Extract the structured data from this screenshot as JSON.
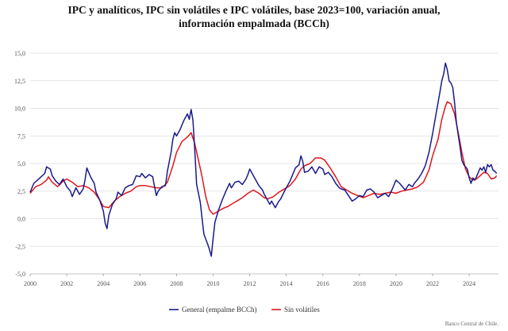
{
  "chart_data": {
    "type": "line",
    "title_line1": "IPC y analíticos, IPC sin volátiles e IPC volátiles, base 2023=100, variación anual,",
    "title_line2": "información empalmada (BCCh)",
    "xlabel": "",
    "ylabel": "",
    "xlim": [
      2000,
      2025.6
    ],
    "ylim": [
      -5.0,
      15.0
    ],
    "y_ticks": [
      "15,0",
      "12,5",
      "10,0",
      "7,5",
      "5,0",
      "2,5",
      "0,0",
      "-2,5",
      "-5,0"
    ],
    "y_tick_values": [
      15,
      12.5,
      10,
      7.5,
      5,
      2.5,
      0,
      -2.5,
      -5
    ],
    "x_ticks": [
      "2000",
      "2002",
      "2004",
      "2006",
      "2008",
      "2010",
      "2012",
      "2014",
      "2016",
      "2018",
      "2020",
      "2022",
      "2024"
    ],
    "x_tick_values": [
      2000,
      2002,
      2004,
      2006,
      2008,
      2010,
      2012,
      2014,
      2016,
      2018,
      2020,
      2022,
      2024
    ],
    "legend_position": "bottom",
    "source": "Banco Central de Chile.",
    "series": [
      {
        "name": "General (empalme BCCh)",
        "color": "#1a1a8c",
        "points": [
          [
            2000.0,
            2.4
          ],
          [
            2000.2,
            3.2
          ],
          [
            2000.4,
            3.5
          ],
          [
            2000.6,
            3.8
          ],
          [
            2000.8,
            4.1
          ],
          [
            2000.9,
            4.7
          ],
          [
            2001.0,
            4.6
          ],
          [
            2001.1,
            4.5
          ],
          [
            2001.2,
            3.9
          ],
          [
            2001.4,
            3.4
          ],
          [
            2001.6,
            3.1
          ],
          [
            2001.8,
            3.6
          ],
          [
            2002.0,
            2.9
          ],
          [
            2002.2,
            2.5
          ],
          [
            2002.3,
            2.0
          ],
          [
            2002.5,
            2.8
          ],
          [
            2002.7,
            2.2
          ],
          [
            2002.9,
            2.7
          ],
          [
            2003.0,
            3.5
          ],
          [
            2003.1,
            4.6
          ],
          [
            2003.3,
            3.8
          ],
          [
            2003.5,
            3.2
          ],
          [
            2003.6,
            2.4
          ],
          [
            2003.8,
            1.7
          ],
          [
            2004.0,
            0.7
          ],
          [
            2004.1,
            -0.4
          ],
          [
            2004.2,
            -0.9
          ],
          [
            2004.3,
            0.3
          ],
          [
            2004.5,
            1.3
          ],
          [
            2004.7,
            1.8
          ],
          [
            2004.8,
            2.4
          ],
          [
            2005.0,
            2.1
          ],
          [
            2005.2,
            2.8
          ],
          [
            2005.4,
            3.0
          ],
          [
            2005.6,
            3.1
          ],
          [
            2005.8,
            3.9
          ],
          [
            2006.0,
            3.8
          ],
          [
            2006.1,
            4.1
          ],
          [
            2006.3,
            3.7
          ],
          [
            2006.5,
            4.0
          ],
          [
            2006.7,
            3.8
          ],
          [
            2006.8,
            2.9
          ],
          [
            2006.9,
            2.1
          ],
          [
            2007.0,
            2.5
          ],
          [
            2007.2,
            2.9
          ],
          [
            2007.4,
            3.0
          ],
          [
            2007.5,
            4.3
          ],
          [
            2007.7,
            6.0
          ],
          [
            2007.8,
            7.2
          ],
          [
            2007.9,
            7.8
          ],
          [
            2008.0,
            7.5
          ],
          [
            2008.2,
            8.1
          ],
          [
            2008.4,
            8.9
          ],
          [
            2008.5,
            9.2
          ],
          [
            2008.6,
            9.5
          ],
          [
            2008.7,
            9.0
          ],
          [
            2008.8,
            9.9
          ],
          [
            2008.9,
            8.9
          ],
          [
            2009.0,
            6.2
          ],
          [
            2009.1,
            3.1
          ],
          [
            2009.3,
            1.5
          ],
          [
            2009.4,
            0.0
          ],
          [
            2009.5,
            -1.4
          ],
          [
            2009.7,
            -2.3
          ],
          [
            2009.8,
            -2.8
          ],
          [
            2009.9,
            -3.4
          ],
          [
            2010.0,
            -1.8
          ],
          [
            2010.1,
            -0.3
          ],
          [
            2010.3,
            0.8
          ],
          [
            2010.5,
            1.7
          ],
          [
            2010.7,
            2.5
          ],
          [
            2010.9,
            3.2
          ],
          [
            2011.0,
            2.8
          ],
          [
            2011.2,
            3.3
          ],
          [
            2011.4,
            3.4
          ],
          [
            2011.6,
            3.1
          ],
          [
            2011.8,
            3.6
          ],
          [
            2011.9,
            4.0
          ],
          [
            2012.0,
            4.5
          ],
          [
            2012.1,
            4.2
          ],
          [
            2012.3,
            3.6
          ],
          [
            2012.5,
            3.0
          ],
          [
            2012.7,
            2.6
          ],
          [
            2012.8,
            2.2
          ],
          [
            2013.0,
            1.6
          ],
          [
            2013.1,
            1.3
          ],
          [
            2013.2,
            1.6
          ],
          [
            2013.4,
            1.0
          ],
          [
            2013.6,
            1.6
          ],
          [
            2013.7,
            1.8
          ],
          [
            2013.9,
            2.5
          ],
          [
            2014.0,
            2.8
          ],
          [
            2014.2,
            3.4
          ],
          [
            2014.4,
            4.2
          ],
          [
            2014.5,
            4.6
          ],
          [
            2014.7,
            4.9
          ],
          [
            2014.8,
            5.7
          ],
          [
            2014.9,
            5.2
          ],
          [
            2015.0,
            4.2
          ],
          [
            2015.2,
            4.3
          ],
          [
            2015.4,
            4.7
          ],
          [
            2015.6,
            4.1
          ],
          [
            2015.8,
            4.7
          ],
          [
            2016.0,
            4.5
          ],
          [
            2016.1,
            4.0
          ],
          [
            2016.3,
            4.2
          ],
          [
            2016.5,
            3.8
          ],
          [
            2016.7,
            3.2
          ],
          [
            2016.9,
            2.8
          ],
          [
            2017.0,
            2.7
          ],
          [
            2017.2,
            2.6
          ],
          [
            2017.4,
            2.1
          ],
          [
            2017.6,
            1.6
          ],
          [
            2017.8,
            1.8
          ],
          [
            2018.0,
            2.1
          ],
          [
            2018.2,
            2.0
          ],
          [
            2018.4,
            2.6
          ],
          [
            2018.6,
            2.7
          ],
          [
            2018.8,
            2.4
          ],
          [
            2019.0,
            1.9
          ],
          [
            2019.2,
            2.1
          ],
          [
            2019.4,
            2.3
          ],
          [
            2019.6,
            2.0
          ],
          [
            2019.8,
            2.7
          ],
          [
            2020.0,
            3.5
          ],
          [
            2020.2,
            3.2
          ],
          [
            2020.4,
            2.8
          ],
          [
            2020.5,
            2.6
          ],
          [
            2020.7,
            3.1
          ],
          [
            2020.9,
            2.9
          ],
          [
            2021.0,
            3.2
          ],
          [
            2021.2,
            3.6
          ],
          [
            2021.4,
            4.1
          ],
          [
            2021.6,
            4.8
          ],
          [
            2021.8,
            6.0
          ],
          [
            2022.0,
            7.7
          ],
          [
            2022.2,
            9.6
          ],
          [
            2022.4,
            11.5
          ],
          [
            2022.5,
            12.5
          ],
          [
            2022.6,
            13.1
          ],
          [
            2022.7,
            14.1
          ],
          [
            2022.8,
            13.5
          ],
          [
            2022.9,
            12.5
          ],
          [
            2023.0,
            12.3
          ],
          [
            2023.1,
            11.9
          ],
          [
            2023.2,
            10.5
          ],
          [
            2023.3,
            8.7
          ],
          [
            2023.4,
            7.6
          ],
          [
            2023.5,
            6.5
          ],
          [
            2023.6,
            5.3
          ],
          [
            2023.7,
            4.9
          ],
          [
            2023.8,
            4.7
          ],
          [
            2023.9,
            4.5
          ],
          [
            2024.0,
            3.7
          ],
          [
            2024.1,
            3.2
          ],
          [
            2024.2,
            3.7
          ],
          [
            2024.3,
            3.5
          ],
          [
            2024.4,
            3.8
          ],
          [
            2024.5,
            4.2
          ],
          [
            2024.6,
            4.6
          ],
          [
            2024.7,
            4.4
          ],
          [
            2024.8,
            4.7
          ],
          [
            2024.9,
            4.2
          ],
          [
            2025.0,
            4.9
          ],
          [
            2025.1,
            4.7
          ],
          [
            2025.2,
            4.9
          ],
          [
            2025.3,
            4.4
          ],
          [
            2025.4,
            4.3
          ],
          [
            2025.5,
            4.1
          ]
        ]
      },
      {
        "name": "Sin volátiles",
        "color": "#e0161b",
        "points": [
          [
            2000.0,
            2.3
          ],
          [
            2000.3,
            2.9
          ],
          [
            2000.6,
            3.1
          ],
          [
            2000.9,
            3.5
          ],
          [
            2001.0,
            3.8
          ],
          [
            2001.2,
            3.3
          ],
          [
            2001.5,
            2.9
          ],
          [
            2001.8,
            3.4
          ],
          [
            2002.0,
            3.6
          ],
          [
            2002.3,
            3.3
          ],
          [
            2002.6,
            2.9
          ],
          [
            2002.9,
            3.0
          ],
          [
            2003.2,
            2.8
          ],
          [
            2003.5,
            2.4
          ],
          [
            2003.8,
            1.7
          ],
          [
            2004.0,
            1.1
          ],
          [
            2004.3,
            1.0
          ],
          [
            2004.6,
            1.6
          ],
          [
            2004.9,
            2.0
          ],
          [
            2005.2,
            2.3
          ],
          [
            2005.5,
            2.5
          ],
          [
            2005.8,
            2.9
          ],
          [
            2006.0,
            3.0
          ],
          [
            2006.3,
            3.0
          ],
          [
            2006.6,
            2.9
          ],
          [
            2006.9,
            2.8
          ],
          [
            2007.2,
            2.8
          ],
          [
            2007.5,
            3.3
          ],
          [
            2007.8,
            4.8
          ],
          [
            2008.0,
            6.0
          ],
          [
            2008.3,
            7.0
          ],
          [
            2008.6,
            7.4
          ],
          [
            2008.8,
            7.8
          ],
          [
            2009.0,
            6.8
          ],
          [
            2009.2,
            5.3
          ],
          [
            2009.4,
            3.8
          ],
          [
            2009.6,
            2.0
          ],
          [
            2009.8,
            0.8
          ],
          [
            2010.0,
            0.4
          ],
          [
            2010.2,
            0.6
          ],
          [
            2010.5,
            0.9
          ],
          [
            2010.8,
            1.1
          ],
          [
            2011.0,
            1.3
          ],
          [
            2011.3,
            1.6
          ],
          [
            2011.6,
            1.9
          ],
          [
            2011.9,
            2.3
          ],
          [
            2012.2,
            2.6
          ],
          [
            2012.5,
            2.3
          ],
          [
            2012.8,
            1.9
          ],
          [
            2013.0,
            1.8
          ],
          [
            2013.3,
            2.0
          ],
          [
            2013.6,
            2.4
          ],
          [
            2013.9,
            2.7
          ],
          [
            2014.2,
            3.0
          ],
          [
            2014.5,
            3.6
          ],
          [
            2014.8,
            4.5
          ],
          [
            2015.0,
            4.8
          ],
          [
            2015.3,
            5.0
          ],
          [
            2015.6,
            5.5
          ],
          [
            2015.9,
            5.5
          ],
          [
            2016.1,
            5.3
          ],
          [
            2016.4,
            4.6
          ],
          [
            2016.7,
            3.8
          ],
          [
            2017.0,
            2.9
          ],
          [
            2017.3,
            2.6
          ],
          [
            2017.6,
            2.3
          ],
          [
            2017.9,
            2.1
          ],
          [
            2018.2,
            1.9
          ],
          [
            2018.5,
            2.1
          ],
          [
            2018.8,
            2.3
          ],
          [
            2019.1,
            2.2
          ],
          [
            2019.4,
            2.3
          ],
          [
            2019.7,
            2.4
          ],
          [
            2020.0,
            2.3
          ],
          [
            2020.3,
            2.5
          ],
          [
            2020.6,
            2.6
          ],
          [
            2020.9,
            2.7
          ],
          [
            2021.2,
            2.9
          ],
          [
            2021.5,
            3.3
          ],
          [
            2021.8,
            4.4
          ],
          [
            2022.0,
            5.7
          ],
          [
            2022.3,
            7.2
          ],
          [
            2022.5,
            9.0
          ],
          [
            2022.7,
            10.2
          ],
          [
            2022.8,
            10.6
          ],
          [
            2023.0,
            10.4
          ],
          [
            2023.2,
            9.5
          ],
          [
            2023.4,
            7.8
          ],
          [
            2023.6,
            6.0
          ],
          [
            2023.8,
            4.5
          ],
          [
            2024.0,
            3.8
          ],
          [
            2024.2,
            3.5
          ],
          [
            2024.4,
            3.6
          ],
          [
            2024.6,
            3.9
          ],
          [
            2024.8,
            4.2
          ],
          [
            2025.0,
            4.1
          ],
          [
            2025.2,
            3.6
          ],
          [
            2025.4,
            3.7
          ],
          [
            2025.5,
            3.9
          ]
        ]
      }
    ]
  }
}
